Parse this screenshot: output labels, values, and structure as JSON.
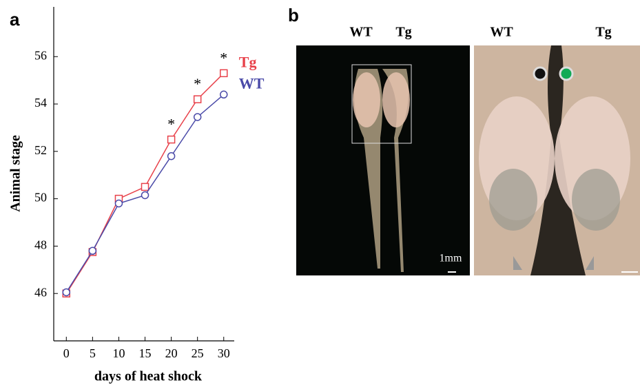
{
  "chart_data": {
    "type": "line",
    "panel_label": "a",
    "x_label": "days of heat shock",
    "y_label": "Animal stage",
    "x": [
      0,
      5,
      10,
      15,
      20,
      25,
      30
    ],
    "series": [
      {
        "name": "Tg",
        "color": "#e8414a",
        "marker": "square",
        "values": [
          46.0,
          47.75,
          50.0,
          50.5,
          52.5,
          54.2,
          55.3
        ]
      },
      {
        "name": "WT",
        "color": "#4a4aa8",
        "marker": "circle",
        "values": [
          46.05,
          47.8,
          49.8,
          50.15,
          51.8,
          53.45,
          54.4
        ]
      }
    ],
    "annotations": [
      {
        "text": "*",
        "x": 20
      },
      {
        "text": "*",
        "x": 25
      },
      {
        "text": "*",
        "x": 30
      }
    ],
    "xlim": [
      -2.4,
      32
    ],
    "ylim": [
      44,
      58.1
    ],
    "xticks": [
      0,
      5,
      10,
      15,
      20,
      25,
      30
    ],
    "yticks": [
      46,
      48,
      50,
      52,
      54,
      56
    ]
  },
  "photo_panel": {
    "panel_label": "b",
    "left_photo": {
      "labels": [
        "WT",
        "Tg"
      ],
      "scale_label": "1mm"
    },
    "right_photo": {
      "labels": [
        "WT",
        "Tg"
      ]
    }
  }
}
